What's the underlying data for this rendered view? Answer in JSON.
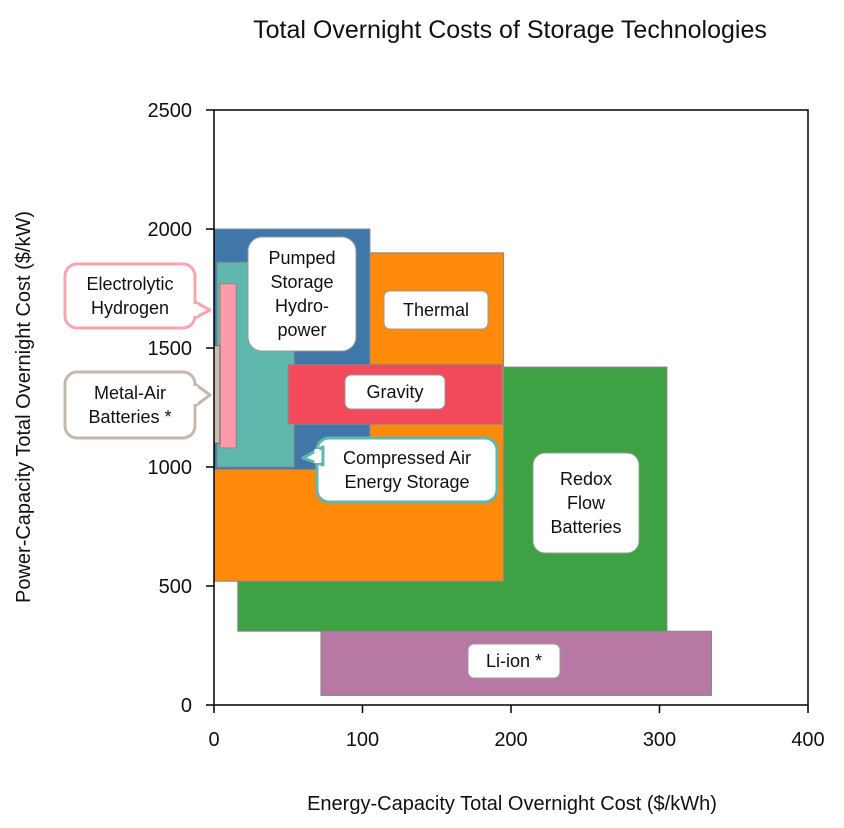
{
  "chart_data": {
    "type": "range-box",
    "title": "Total Overnight Costs of Storage Technologies",
    "xlabel": "Energy-Capacity Total Overnight Cost ($/kWh)",
    "ylabel": "Power-Capacity Total Overnight Cost ($/kW)",
    "xlim": [
      0,
      400
    ],
    "ylim": [
      0,
      2500
    ],
    "xticks": [
      "0",
      "100",
      "200",
      "300",
      "400"
    ],
    "yticks": [
      "0",
      "500",
      "1000",
      "1500",
      "2000",
      "2500"
    ],
    "grid": false,
    "series": [
      {
        "name": "Li-ion *",
        "x": [
          72,
          335
        ],
        "y": [
          40,
          310
        ],
        "color": "#b878a4",
        "border": "#888888",
        "lines": [
          "Li-ion *"
        ],
        "callout": false
      },
      {
        "name": "Redox Flow Batteries",
        "x": [
          16,
          305
        ],
        "y": [
          310,
          1420
        ],
        "color": "#3ea244",
        "border": "#888888",
        "lines": [
          "Redox",
          "Flow",
          "Batteries"
        ],
        "callout": false
      },
      {
        "name": "Thermal",
        "x": [
          0,
          195
        ],
        "y": [
          520,
          1900
        ],
        "color": "#ff8a0a",
        "border": "#888888",
        "lines": [
          "Thermal"
        ],
        "callout": false
      },
      {
        "name": "Pumped Storage Hydropower",
        "x": [
          0,
          105
        ],
        "y": [
          990,
          2000
        ],
        "color": "#3f78a8",
        "border": "#888888",
        "lines": [
          "Pumped",
          "Storage",
          "Hydro-",
          "power"
        ],
        "callout": false
      },
      {
        "name": "Compressed Air Energy Storage",
        "x": [
          2,
          54
        ],
        "y": [
          1000,
          1860
        ],
        "color": "#5fb7ae",
        "border": "#888888",
        "lines": [
          "Compressed Air",
          "Energy Storage"
        ],
        "callout": true,
        "accent": "#5fb7ae"
      },
      {
        "name": "Gravity",
        "x": [
          50,
          194
        ],
        "y": [
          1180,
          1430
        ],
        "color": "#f2495b",
        "border": "#888888",
        "lines": [
          "Gravity"
        ],
        "callout": false
      },
      {
        "name": "Electrolytic Hydrogen",
        "x": [
          4,
          15
        ],
        "y": [
          1080,
          1770
        ],
        "color": "#ff9aa8",
        "border": "#888888",
        "lines": [
          "Electrolytic",
          "Hydrogen"
        ],
        "callout": true,
        "accent": "#f7a6b0"
      },
      {
        "name": "Metal-Air Batteries *",
        "x": [
          0,
          4
        ],
        "y": [
          1100,
          1510
        ],
        "color": "#c9bdb3",
        "border": "#666666",
        "lines": [
          "Metal-Air",
          "Batteries *"
        ],
        "callout": true,
        "accent": "#c4b8ae"
      }
    ]
  }
}
